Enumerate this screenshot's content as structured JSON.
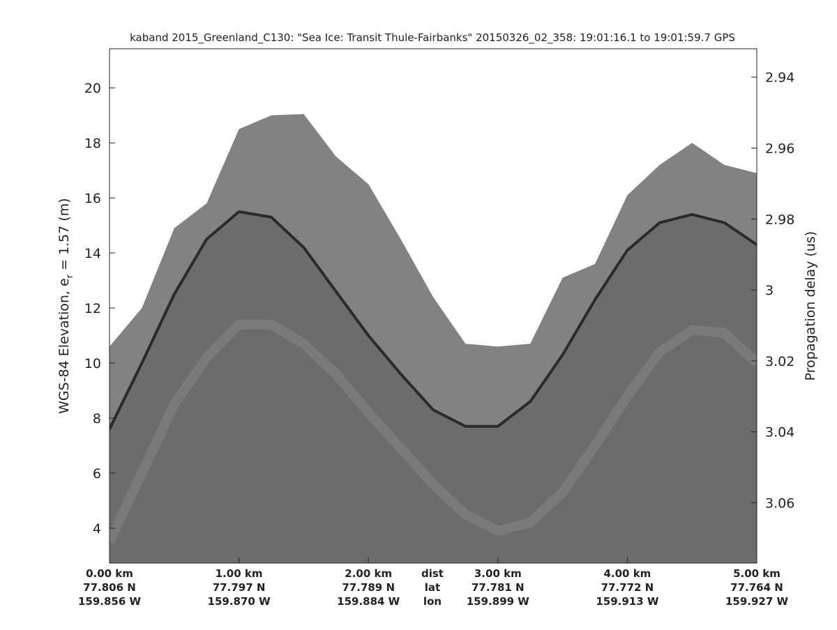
{
  "chart_data": {
    "type": "echogram",
    "title": "kaband 2015_Greenland_C130: \"Sea Ice: Transit Thule-Fairbanks\"  20150326_02_358: 19:01:16.1 to 19:01:59.7 GPS",
    "ylabel": "WGS-84 Elevation, e",
    "ylabel_sub": "r",
    "ylabel_tail": " = 1.57 (m)",
    "y2label": "Propagation delay (us)",
    "xlim": [
      0,
      5
    ],
    "ylim": [
      2.73,
      21.42
    ],
    "y2lim": [
      3.077,
      2.932
    ],
    "yticks": [
      4,
      6,
      8,
      10,
      12,
      14,
      16,
      18,
      20
    ],
    "y2ticks": [
      2.94,
      2.96,
      2.98,
      3,
      3.02,
      3.04,
      3.06
    ],
    "xticks": [
      {
        "value": 0,
        "label": "0.00 km"
      },
      {
        "value": 1,
        "label": "1.00 km"
      },
      {
        "value": 2,
        "label": "2.00 km"
      },
      {
        "value": 3,
        "label": "3.00 km"
      },
      {
        "value": 4,
        "label": "4.00 km"
      },
      {
        "value": 5,
        "label": "5.00 km"
      }
    ],
    "lat_labels": [
      "77.806 N",
      "77.797 N",
      "77.789 N",
      "77.781 N",
      "77.772 N",
      "77.764 N"
    ],
    "lon_labels": [
      "159.856 W",
      "159.870 W",
      "159.884 W",
      "159.899 W",
      "159.913 W",
      "159.927 W"
    ],
    "row_labels": [
      "dist",
      "lat",
      "lon"
    ],
    "x": [
      0,
      0.25,
      0.5,
      0.75,
      1,
      1.25,
      1.5,
      1.75,
      2,
      2.25,
      2.5,
      2.75,
      3,
      3.25,
      3.5,
      3.75,
      4,
      4.25,
      4.5,
      4.75,
      5
    ],
    "series": [
      {
        "color": "#828282",
        "values": [
          10.6,
          12,
          14.9,
          15.8,
          18.5,
          19,
          19.05,
          17.5,
          16.5,
          14.5,
          12.4,
          10.7,
          10.6,
          10.7,
          13.1,
          13.6,
          16.1,
          17.2,
          18,
          17.2,
          16.9
        ]
      },
      {
        "color": "#2a2a2a",
        "values": [
          7.6,
          10,
          12.5,
          14.5,
          15.5,
          15.3,
          14.2,
          12.6,
          11,
          9.6,
          8.3,
          7.7,
          7.7,
          8.6,
          10.3,
          12.3,
          14.1,
          15.1,
          15.4,
          15.1,
          14.3
        ]
      },
      {
        "color": "#7a7a7a",
        "values": [
          3.5,
          6,
          8.5,
          10.2,
          11.4,
          11.4,
          10.7,
          9.6,
          8.2,
          6.9,
          5.6,
          4.5,
          3.9,
          4.2,
          5.3,
          7,
          8.8,
          10.4,
          11.2,
          11.1,
          10
        ]
      }
    ]
  }
}
